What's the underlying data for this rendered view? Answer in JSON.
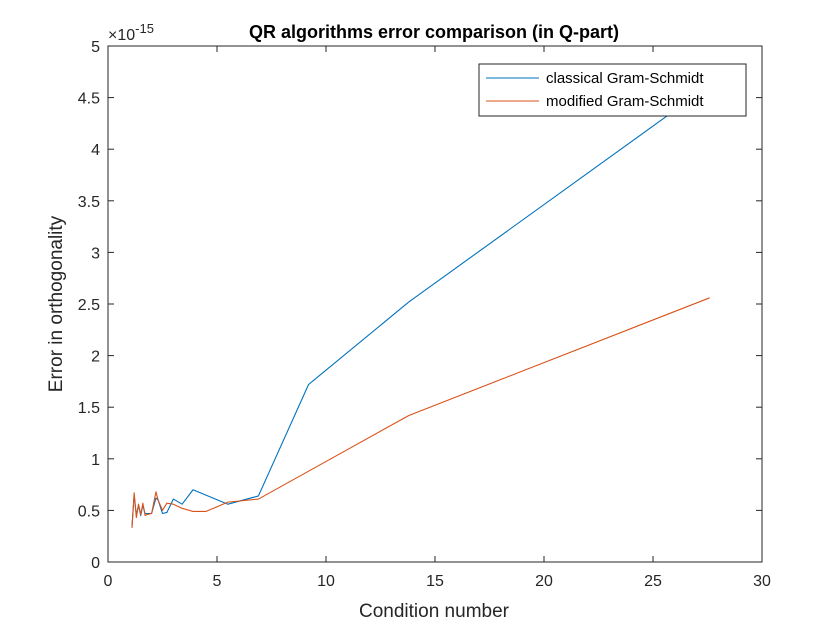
{
  "chart_data": {
    "type": "line",
    "title": "QR algorithms error comparison (in Q-part)",
    "xlabel": "Condition number",
    "ylabel": "Error in orthogonality",
    "xlim": [
      0,
      30
    ],
    "ylim": [
      0,
      5
    ],
    "xticks": [
      "0",
      "5",
      "10",
      "15",
      "20",
      "25",
      "30"
    ],
    "yticks": [
      "0",
      "0.5",
      "1",
      "1.5",
      "2",
      "2.5",
      "3",
      "3.5",
      "4",
      "4.5",
      "5"
    ],
    "y_scale_base": "×10",
    "y_scale_exponent": "-15",
    "legend_position": "top-right",
    "grid": false,
    "series": [
      {
        "name": "classical Gram-Schmidt",
        "color": "#0072BD",
        "x": [
          1.1,
          1.2,
          1.3,
          1.4,
          1.5,
          1.6,
          1.7,
          1.8,
          2.0,
          2.2,
          2.3,
          2.5,
          2.7,
          3.0,
          3.4,
          3.9,
          5.5,
          6.9,
          9.2,
          13.8,
          27.6
        ],
        "y": [
          0.35,
          0.65,
          0.45,
          0.55,
          0.45,
          0.55,
          0.47,
          0.47,
          0.47,
          0.62,
          0.6,
          0.47,
          0.48,
          0.61,
          0.56,
          0.7,
          0.56,
          0.64,
          1.72,
          2.52,
          4.62
        ]
      },
      {
        "name": "modified Gram-Schmidt",
        "color": "#D95319",
        "x": [
          1.1,
          1.2,
          1.3,
          1.4,
          1.5,
          1.6,
          1.7,
          1.8,
          2.0,
          2.2,
          2.3,
          2.5,
          2.7,
          3.0,
          3.4,
          3.9,
          4.5,
          5.5,
          6.9,
          9.2,
          13.8,
          27.6
        ],
        "y": [
          0.33,
          0.67,
          0.43,
          0.56,
          0.46,
          0.57,
          0.45,
          0.46,
          0.47,
          0.68,
          0.6,
          0.5,
          0.57,
          0.56,
          0.52,
          0.49,
          0.49,
          0.58,
          0.61,
          0.88,
          1.42,
          2.56
        ]
      }
    ]
  }
}
